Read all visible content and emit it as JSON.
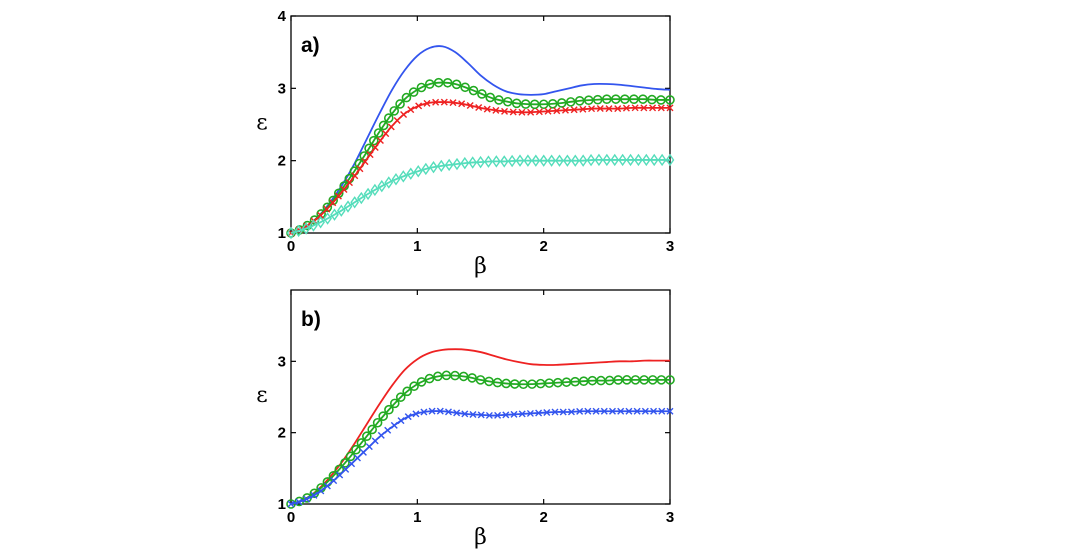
{
  "chart_data": [
    {
      "type": "line",
      "panel_label": "a)",
      "xlabel": "β",
      "ylabel": "ε",
      "xlim": [
        0,
        3
      ],
      "ylim": [
        1,
        4
      ],
      "xticks": [
        0,
        1,
        2,
        3
      ],
      "yticks": [
        1,
        2,
        3,
        4
      ],
      "series": [
        {
          "name": "blue",
          "color": "#3355ee",
          "marker": "none",
          "x": [
            0,
            0.1,
            0.2,
            0.3,
            0.4,
            0.5,
            0.6,
            0.7,
            0.8,
            0.9,
            1.0,
            1.1,
            1.2,
            1.3,
            1.4,
            1.5,
            1.6,
            1.7,
            1.8,
            1.9,
            2.0,
            2.1,
            2.2,
            2.3,
            2.4,
            2.5,
            2.6,
            2.7,
            2.8,
            2.9,
            3.0
          ],
          "y": [
            1.0,
            1.07,
            1.2,
            1.4,
            1.65,
            1.95,
            2.3,
            2.65,
            2.98,
            3.25,
            3.45,
            3.56,
            3.58,
            3.5,
            3.35,
            3.18,
            3.05,
            2.96,
            2.92,
            2.91,
            2.92,
            2.96,
            3.0,
            3.04,
            3.06,
            3.06,
            3.05,
            3.03,
            3.01,
            2.99,
            2.98
          ]
        },
        {
          "name": "green",
          "color": "#22aa22",
          "marker": "circle",
          "x": [
            0,
            0.1,
            0.2,
            0.3,
            0.4,
            0.5,
            0.6,
            0.7,
            0.8,
            0.9,
            1.0,
            1.1,
            1.2,
            1.3,
            1.4,
            1.5,
            1.6,
            1.7,
            1.8,
            1.9,
            2.0,
            2.1,
            2.2,
            2.3,
            2.4,
            2.5,
            2.6,
            2.7,
            2.8,
            2.9,
            3.0
          ],
          "y": [
            1.0,
            1.07,
            1.2,
            1.38,
            1.6,
            1.85,
            2.12,
            2.4,
            2.65,
            2.85,
            2.98,
            3.06,
            3.08,
            3.06,
            3.0,
            2.93,
            2.86,
            2.82,
            2.79,
            2.78,
            2.78,
            2.79,
            2.81,
            2.83,
            2.84,
            2.85,
            2.85,
            2.85,
            2.85,
            2.84,
            2.84
          ]
        },
        {
          "name": "red",
          "color": "#ee2222",
          "marker": "x",
          "x": [
            0,
            0.1,
            0.2,
            0.3,
            0.4,
            0.5,
            0.6,
            0.7,
            0.8,
            0.9,
            1.0,
            1.1,
            1.2,
            1.3,
            1.4,
            1.5,
            1.6,
            1.7,
            1.8,
            1.9,
            2.0,
            2.1,
            2.2,
            2.3,
            2.4,
            2.5,
            2.6,
            2.7,
            2.8,
            2.9,
            3.0
          ],
          "y": [
            1.0,
            1.07,
            1.19,
            1.36,
            1.56,
            1.78,
            2.02,
            2.26,
            2.48,
            2.65,
            2.75,
            2.8,
            2.81,
            2.8,
            2.77,
            2.73,
            2.7,
            2.68,
            2.67,
            2.67,
            2.68,
            2.69,
            2.7,
            2.71,
            2.72,
            2.72,
            2.72,
            2.73,
            2.73,
            2.73,
            2.73
          ]
        },
        {
          "name": "cyan",
          "color": "#55ddbb",
          "marker": "diamond",
          "x": [
            0,
            0.1,
            0.2,
            0.3,
            0.4,
            0.5,
            0.6,
            0.7,
            0.8,
            0.9,
            1.0,
            1.1,
            1.2,
            1.3,
            1.4,
            1.5,
            1.6,
            1.7,
            1.8,
            1.9,
            2.0,
            2.1,
            2.2,
            2.3,
            2.4,
            2.5,
            2.6,
            2.7,
            2.8,
            2.9,
            3.0
          ],
          "y": [
            1.0,
            1.05,
            1.12,
            1.21,
            1.31,
            1.42,
            1.53,
            1.63,
            1.72,
            1.79,
            1.85,
            1.9,
            1.93,
            1.95,
            1.97,
            1.98,
            1.99,
            1.99,
            2.0,
            2.0,
            2.0,
            2.0,
            2.0,
            2.0,
            2.01,
            2.01,
            2.01,
            2.01,
            2.01,
            2.01,
            2.01
          ]
        }
      ]
    },
    {
      "type": "line",
      "panel_label": "b)",
      "xlabel": "β",
      "ylabel": "ε",
      "xlim": [
        0,
        3
      ],
      "ylim": [
        1,
        4
      ],
      "xticks": [
        0,
        1,
        2,
        3
      ],
      "yticks": [
        1,
        2,
        3
      ],
      "series": [
        {
          "name": "red",
          "color": "#ee2222",
          "marker": "none",
          "x": [
            0,
            0.1,
            0.2,
            0.3,
            0.4,
            0.5,
            0.6,
            0.7,
            0.8,
            0.9,
            1.0,
            1.1,
            1.2,
            1.3,
            1.4,
            1.5,
            1.6,
            1.7,
            1.8,
            1.9,
            2.0,
            2.1,
            2.2,
            2.3,
            2.4,
            2.5,
            2.6,
            2.7,
            2.8,
            2.9,
            3.0
          ],
          "y": [
            1.0,
            1.06,
            1.18,
            1.36,
            1.58,
            1.84,
            2.12,
            2.4,
            2.66,
            2.88,
            3.03,
            3.12,
            3.16,
            3.17,
            3.16,
            3.13,
            3.08,
            3.03,
            2.99,
            2.96,
            2.95,
            2.95,
            2.96,
            2.97,
            2.98,
            2.99,
            3.0,
            3.0,
            3.01,
            3.01,
            3.01
          ]
        },
        {
          "name": "green",
          "color": "#22aa22",
          "marker": "circle",
          "x": [
            0,
            0.1,
            0.2,
            0.3,
            0.4,
            0.5,
            0.6,
            0.7,
            0.8,
            0.9,
            1.0,
            1.1,
            1.2,
            1.3,
            1.4,
            1.5,
            1.6,
            1.7,
            1.8,
            1.9,
            2.0,
            2.1,
            2.2,
            2.3,
            2.4,
            2.5,
            2.6,
            2.7,
            2.8,
            2.9,
            3.0
          ],
          "y": [
            1.0,
            1.06,
            1.17,
            1.33,
            1.52,
            1.73,
            1.95,
            2.17,
            2.37,
            2.55,
            2.68,
            2.76,
            2.8,
            2.8,
            2.78,
            2.74,
            2.71,
            2.69,
            2.68,
            2.68,
            2.69,
            2.7,
            2.71,
            2.72,
            2.73,
            2.73,
            2.74,
            2.74,
            2.74,
            2.74,
            2.74
          ]
        },
        {
          "name": "blue",
          "color": "#3355ee",
          "marker": "x",
          "x": [
            0,
            0.1,
            0.2,
            0.3,
            0.4,
            0.5,
            0.6,
            0.7,
            0.8,
            0.9,
            1.0,
            1.1,
            1.2,
            1.3,
            1.4,
            1.5,
            1.6,
            1.7,
            1.8,
            1.9,
            2.0,
            2.1,
            2.2,
            2.3,
            2.4,
            2.5,
            2.6,
            2.7,
            2.8,
            2.9,
            3.0
          ],
          "y": [
            1.0,
            1.05,
            1.14,
            1.27,
            1.43,
            1.6,
            1.77,
            1.94,
            2.08,
            2.2,
            2.27,
            2.3,
            2.3,
            2.28,
            2.26,
            2.25,
            2.24,
            2.25,
            2.26,
            2.27,
            2.28,
            2.29,
            2.29,
            2.3,
            2.3,
            2.3,
            2.3,
            2.3,
            2.3,
            2.3,
            2.3
          ]
        }
      ]
    }
  ]
}
